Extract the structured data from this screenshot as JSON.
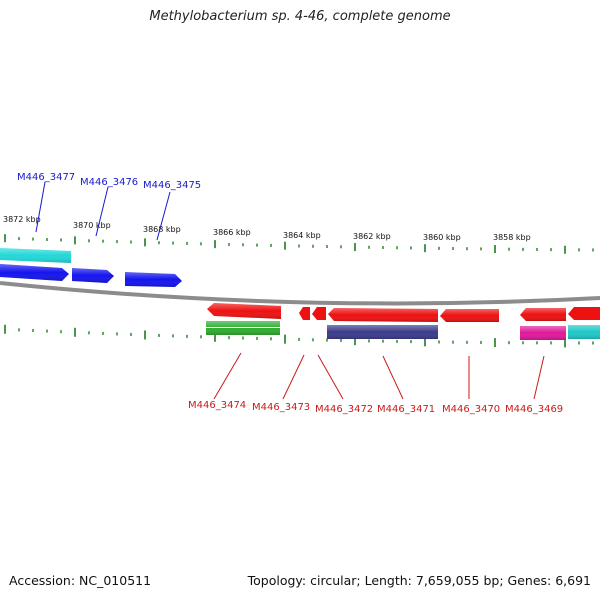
{
  "title": "Methylobacterium sp. 4-46, complete genome",
  "footer": {
    "accession": "Accession: NC_010511",
    "summary": "Topology: circular; Length: 7,659,055 bp; Genes: 6,691"
  },
  "colors": {
    "forward_cds": "#1414ee",
    "forward_rna": "#22d8d8",
    "reverse_cds": "#ee1111",
    "reverse_green": "#2fae2f",
    "reverse_purple": "#3b3b8c",
    "reverse_pink": "#e0189a",
    "reverse_cyan": "#1fc8c8",
    "backbone": "#8c8c8c",
    "ticks": "#1e7a1e",
    "forward_label": "#1a1acc",
    "reverse_label": "#cc1a1a"
  },
  "scale_labels": [
    "3872 kbp",
    "3870 kbp",
    "3868 kbp",
    "3866 kbp",
    "3864 kbp",
    "3862 kbp",
    "3860 kbp",
    "3858 kbp"
  ],
  "forward_labels": [
    "M446_3477",
    "M446_3476",
    "M446_3475"
  ],
  "reverse_labels": [
    "M446_3474",
    "M446_3473",
    "M446_3472",
    "M446_3471",
    "M446_3470",
    "M446_3469"
  ]
}
